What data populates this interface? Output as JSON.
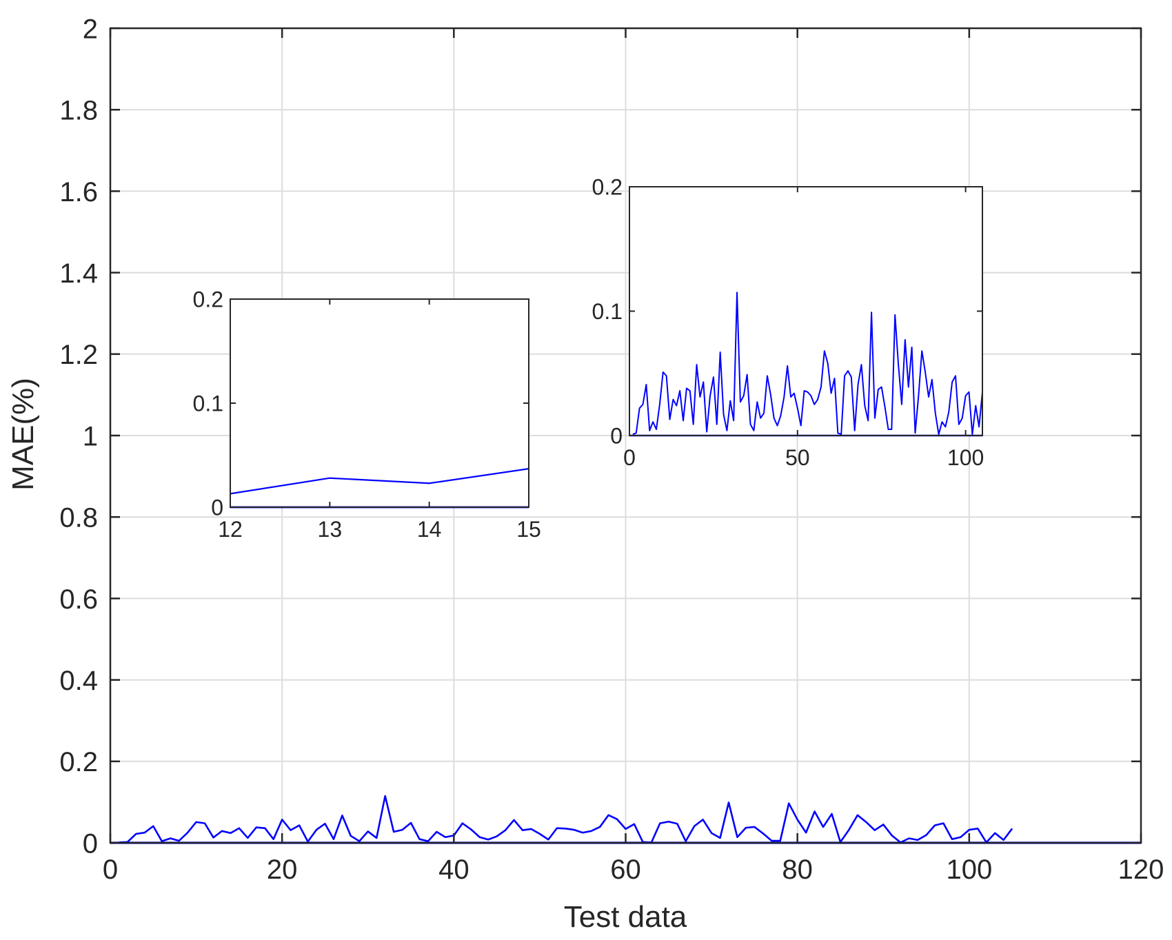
{
  "chart_data": [
    {
      "id": "main",
      "type": "line",
      "title": "",
      "xlabel": "Test data",
      "ylabel": "MAE(%)",
      "xlim": [
        0,
        120
      ],
      "ylim": [
        0,
        2
      ],
      "xticks": [
        0,
        20,
        40,
        60,
        80,
        100,
        120
      ],
      "yticks": [
        0,
        0.2,
        0.4,
        0.6,
        0.8,
        1,
        1.2,
        1.4,
        1.6,
        1.8,
        2
      ],
      "xtick_labels": [
        "0",
        "20",
        "40",
        "60",
        "80",
        "100",
        "120"
      ],
      "ytick_labels": [
        "0",
        "0.2",
        "0.4",
        "0.6",
        "0.8",
        "1",
        "1.2",
        "1.4",
        "1.6",
        "1.8",
        "2"
      ],
      "grid": true,
      "color": "#0000ff",
      "x": [
        1,
        2,
        3,
        4,
        5,
        6,
        7,
        8,
        9,
        10,
        11,
        12,
        13,
        14,
        15,
        16,
        17,
        18,
        19,
        20,
        21,
        22,
        23,
        24,
        25,
        26,
        27,
        28,
        29,
        30,
        31,
        32,
        33,
        34,
        35,
        36,
        37,
        38,
        39,
        40,
        41,
        42,
        43,
        44,
        45,
        46,
        47,
        48,
        49,
        50,
        51,
        52,
        53,
        54,
        55,
        56,
        57,
        58,
        59,
        60,
        61,
        62,
        63,
        64,
        65,
        66,
        67,
        68,
        69,
        70,
        71,
        72,
        73,
        74,
        75,
        76,
        77,
        78,
        79,
        80,
        81,
        82,
        83,
        84,
        85,
        86,
        87,
        88,
        89,
        90,
        91,
        92,
        93,
        94,
        95,
        96,
        97,
        98,
        99,
        100,
        101,
        102,
        103,
        104,
        105
      ],
      "values": [
        0.001,
        0.002,
        0.022,
        0.025,
        0.041,
        0.004,
        0.011,
        0.005,
        0.025,
        0.051,
        0.048,
        0.013,
        0.029,
        0.024,
        0.036,
        0.012,
        0.038,
        0.036,
        0.009,
        0.057,
        0.031,
        0.043,
        0.003,
        0.032,
        0.047,
        0.009,
        0.067,
        0.017,
        0.004,
        0.028,
        0.012,
        0.115,
        0.027,
        0.032,
        0.049,
        0.009,
        0.004,
        0.027,
        0.014,
        0.018,
        0.048,
        0.033,
        0.014,
        0.008,
        0.016,
        0.031,
        0.056,
        0.031,
        0.034,
        0.022,
        0.008,
        0.036,
        0.035,
        0.032,
        0.025,
        0.029,
        0.039,
        0.068,
        0.058,
        0.034,
        0.046,
        0.002,
        0.001,
        0.048,
        0.052,
        0.047,
        0.004,
        0.041,
        0.057,
        0.024,
        0.012,
        0.099,
        0.014,
        0.037,
        0.039,
        0.023,
        0.005,
        0.005,
        0.097,
        0.057,
        0.025,
        0.077,
        0.039,
        0.071,
        0.002,
        0.032,
        0.068,
        0.051,
        0.031,
        0.045,
        0.018,
        0.001,
        0.011,
        0.007,
        0.019,
        0.043,
        0.048,
        0.009,
        0.014,
        0.032,
        0.035,
        0.001,
        0.024,
        0.007,
        0.035
      ],
      "baseline": 0
    },
    {
      "id": "inset-zoom",
      "type": "line",
      "title": "",
      "xlabel": "",
      "ylabel": "",
      "xlim": [
        12,
        15
      ],
      "ylim": [
        0,
        0.2
      ],
      "xticks": [
        12,
        13,
        14,
        15
      ],
      "yticks": [
        0,
        0.1,
        0.2
      ],
      "xtick_labels": [
        "12",
        "13",
        "14",
        "15"
      ],
      "ytick_labels": [
        "0",
        "0.1",
        "0.2"
      ],
      "grid": false,
      "color": "#0000ff",
      "x": [
        12,
        13,
        14,
        15
      ],
      "values": [
        0.013,
        0.028,
        0.023,
        0.037
      ],
      "baseline": 0
    },
    {
      "id": "inset-full",
      "type": "line",
      "title": "",
      "xlabel": "",
      "ylabel": "",
      "xlim": [
        0,
        105
      ],
      "ylim": [
        0,
        0.2
      ],
      "xticks": [
        0,
        50,
        100
      ],
      "yticks": [
        0,
        0.1,
        0.2
      ],
      "xtick_labels": [
        "0",
        "50",
        "100"
      ],
      "ytick_labels": [
        "0",
        "0.1",
        "0.2"
      ],
      "grid": false,
      "color": "#0000ff",
      "x": [
        1,
        2,
        3,
        4,
        5,
        6,
        7,
        8,
        9,
        10,
        11,
        12,
        13,
        14,
        15,
        16,
        17,
        18,
        19,
        20,
        21,
        22,
        23,
        24,
        25,
        26,
        27,
        28,
        29,
        30,
        31,
        32,
        33,
        34,
        35,
        36,
        37,
        38,
        39,
        40,
        41,
        42,
        43,
        44,
        45,
        46,
        47,
        48,
        49,
        50,
        51,
        52,
        53,
        54,
        55,
        56,
        57,
        58,
        59,
        60,
        61,
        62,
        63,
        64,
        65,
        66,
        67,
        68,
        69,
        70,
        71,
        72,
        73,
        74,
        75,
        76,
        77,
        78,
        79,
        80,
        81,
        82,
        83,
        84,
        85,
        86,
        87,
        88,
        89,
        90,
        91,
        92,
        93,
        94,
        95,
        96,
        97,
        98,
        99,
        100,
        101,
        102,
        103,
        104,
        105
      ],
      "values": [
        0.001,
        0.002,
        0.022,
        0.025,
        0.041,
        0.004,
        0.011,
        0.005,
        0.025,
        0.051,
        0.048,
        0.013,
        0.029,
        0.024,
        0.036,
        0.012,
        0.038,
        0.036,
        0.009,
        0.057,
        0.031,
        0.043,
        0.003,
        0.032,
        0.047,
        0.009,
        0.067,
        0.017,
        0.004,
        0.028,
        0.012,
        0.115,
        0.027,
        0.032,
        0.049,
        0.009,
        0.004,
        0.027,
        0.014,
        0.018,
        0.048,
        0.033,
        0.014,
        0.008,
        0.016,
        0.031,
        0.056,
        0.031,
        0.034,
        0.022,
        0.008,
        0.036,
        0.035,
        0.032,
        0.025,
        0.029,
        0.039,
        0.068,
        0.058,
        0.034,
        0.046,
        0.002,
        0.001,
        0.048,
        0.052,
        0.047,
        0.004,
        0.041,
        0.057,
        0.024,
        0.012,
        0.099,
        0.014,
        0.037,
        0.039,
        0.023,
        0.005,
        0.005,
        0.097,
        0.057,
        0.025,
        0.077,
        0.039,
        0.071,
        0.002,
        0.032,
        0.068,
        0.051,
        0.031,
        0.045,
        0.018,
        0.001,
        0.011,
        0.007,
        0.019,
        0.043,
        0.048,
        0.009,
        0.014,
        0.032,
        0.035,
        0.001,
        0.024,
        0.007,
        0.035
      ],
      "baseline": 0
    }
  ]
}
